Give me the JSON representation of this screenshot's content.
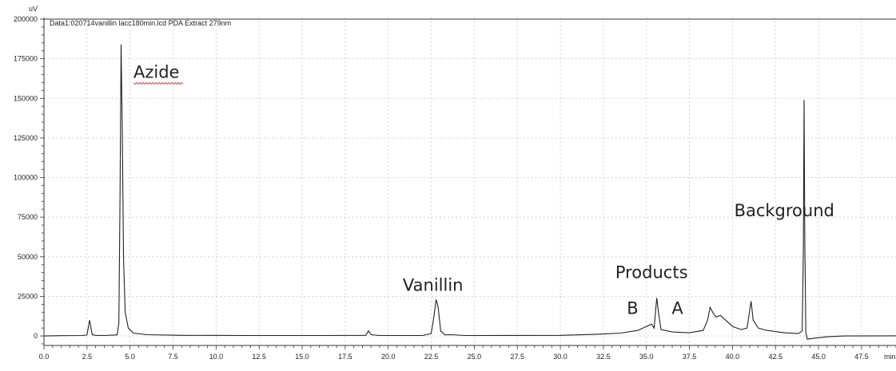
{
  "chart_data": {
    "type": "line",
    "title": "Data1:020714vanillin lacc180min.lcd PDA Extract 279nm",
    "ylabel": "uV",
    "xlabel": "min",
    "xlim": [
      0,
      49.5
    ],
    "ylim": [
      -6000,
      201000
    ],
    "xticks": [
      "0.0",
      "2.5",
      "5.0",
      "7.5",
      "10.0",
      "12.5",
      "15.0",
      "17.5",
      "20.0",
      "22.5",
      "25.0",
      "27.5",
      "30.0",
      "32.5",
      "35.0",
      "37.5",
      "40.0",
      "42.5",
      "45.0",
      "47.5"
    ],
    "xtick_values": [
      0,
      2.5,
      5,
      7.5,
      10,
      12.5,
      15,
      17.5,
      20,
      22.5,
      25,
      27.5,
      30,
      32.5,
      35,
      37.5,
      40,
      42.5,
      45,
      47.5
    ],
    "yticks": [
      "0",
      "25000",
      "50000",
      "75000",
      "100000",
      "125000",
      "150000",
      "175000",
      "200000"
    ],
    "ytick_values": [
      0,
      25000,
      50000,
      75000,
      100000,
      125000,
      150000,
      175000,
      200000
    ],
    "grid": true,
    "line_color": "#222222",
    "annotations": [
      {
        "text": "Azide",
        "x": 5.2,
        "y": 163000,
        "underline": true,
        "underline_color": "#e04040"
      },
      {
        "text": "Vanillin",
        "x": 22.6,
        "y": 28500
      },
      {
        "text": "Products",
        "x": 35.3,
        "y": 36500
      },
      {
        "text": "B",
        "x": 34.2,
        "y": 14000
      },
      {
        "text": "A",
        "x": 36.8,
        "y": 14000
      },
      {
        "text": "Background",
        "x": 40.1,
        "y": 75500
      }
    ],
    "series": [
      {
        "points": [
          [
            0,
            0
          ],
          [
            1.0,
            200
          ],
          [
            2.2,
            300
          ],
          [
            2.5,
            600
          ],
          [
            2.65,
            10000
          ],
          [
            2.8,
            800
          ],
          [
            3.0,
            400
          ],
          [
            3.5,
            300
          ],
          [
            4.25,
            700
          ],
          [
            4.35,
            8000
          ],
          [
            4.42,
            90000
          ],
          [
            4.48,
            184000
          ],
          [
            4.55,
            130000
          ],
          [
            4.62,
            50000
          ],
          [
            4.72,
            15000
          ],
          [
            4.9,
            5000
          ],
          [
            5.2,
            1800
          ],
          [
            6.0,
            800
          ],
          [
            8.0,
            400
          ],
          [
            12.0,
            300
          ],
          [
            16.0,
            300
          ],
          [
            18.7,
            400
          ],
          [
            18.85,
            3200
          ],
          [
            19.0,
            800
          ],
          [
            19.5,
            300
          ],
          [
            22.0,
            300
          ],
          [
            22.5,
            1500
          ],
          [
            22.65,
            12000
          ],
          [
            22.78,
            23000
          ],
          [
            22.9,
            18000
          ],
          [
            23.05,
            3000
          ],
          [
            23.3,
            700
          ],
          [
            23.6,
            800
          ],
          [
            24.5,
            300
          ],
          [
            30.0,
            400
          ],
          [
            32.0,
            1000
          ],
          [
            33.5,
            1800
          ],
          [
            34.5,
            3500
          ],
          [
            35.0,
            6000
          ],
          [
            35.3,
            7500
          ],
          [
            35.45,
            5000
          ],
          [
            35.55,
            18000
          ],
          [
            35.6,
            24000
          ],
          [
            35.7,
            15000
          ],
          [
            35.85,
            4000
          ],
          [
            36.5,
            2500
          ],
          [
            37.5,
            2000
          ],
          [
            38.3,
            3500
          ],
          [
            38.55,
            10000
          ],
          [
            38.7,
            18000
          ],
          [
            38.85,
            15000
          ],
          [
            39.05,
            12000
          ],
          [
            39.3,
            13000
          ],
          [
            39.6,
            10000
          ],
          [
            40.0,
            6000
          ],
          [
            40.5,
            4000
          ],
          [
            40.85,
            5000
          ],
          [
            41.0,
            16000
          ],
          [
            41.08,
            22000
          ],
          [
            41.2,
            10000
          ],
          [
            41.5,
            5000
          ],
          [
            42.0,
            3500
          ],
          [
            43.0,
            2000
          ],
          [
            43.8,
            1500
          ],
          [
            44.05,
            3000
          ],
          [
            44.12,
            55000
          ],
          [
            44.16,
            149000
          ],
          [
            44.2,
            60000
          ],
          [
            44.26,
            2000
          ],
          [
            44.35,
            -2000
          ],
          [
            44.7,
            -1500
          ],
          [
            45.5,
            -500
          ],
          [
            46.5,
            0
          ],
          [
            49.5,
            100
          ]
        ]
      }
    ]
  }
}
